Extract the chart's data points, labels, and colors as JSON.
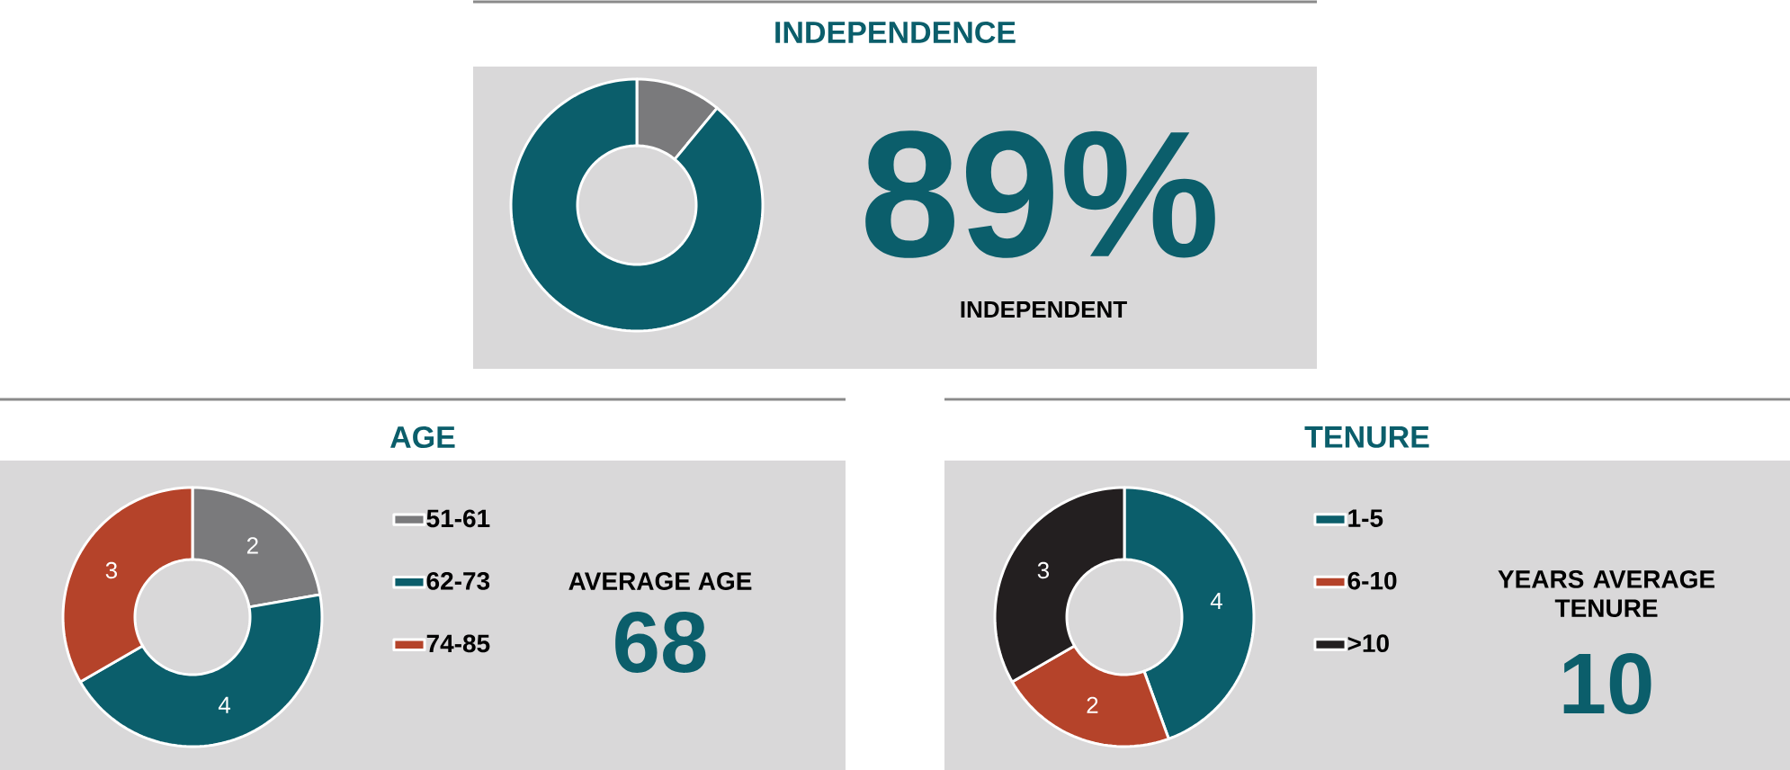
{
  "chart_data": [
    {
      "type": "donut",
      "title": "INDEPENDENCE",
      "categories": [
        null,
        null
      ],
      "values": [
        11,
        89
      ],
      "colors": [
        "#7a7a7c",
        "#0b5e6b"
      ],
      "annotations": [
        "89%",
        "INDEPENDENT"
      ]
    },
    {
      "type": "donut",
      "title": "AGE",
      "categories": [
        "51-61",
        "62-73",
        "74-85"
      ],
      "values": [
        2,
        4,
        3
      ],
      "colors": [
        "#7a7a7c",
        "#0b5e6b",
        "#b5432a"
      ],
      "data_labels": true,
      "legend": "right",
      "annotations": [
        "AVERAGE AGE",
        "68"
      ]
    },
    {
      "type": "donut",
      "title": "TENURE",
      "categories": [
        "1-5",
        "6-10",
        ">10"
      ],
      "values": [
        4,
        2,
        3
      ],
      "colors": [
        "#0b5e6b",
        "#b5432a",
        "#231f20"
      ],
      "data_labels": true,
      "legend": "right",
      "annotations": [
        "YEARS AVERAGE TENURE",
        "10"
      ]
    }
  ]
}
